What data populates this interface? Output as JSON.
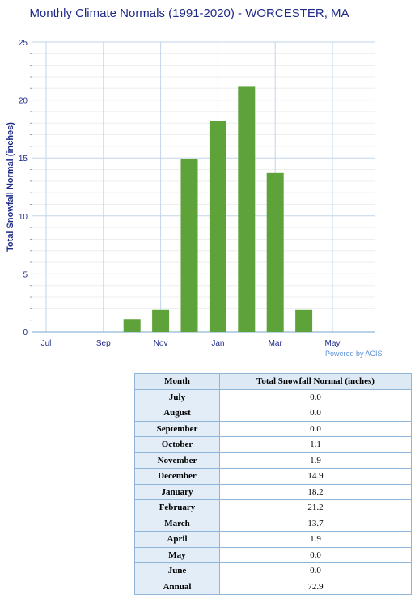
{
  "chart_data": {
    "type": "bar",
    "title": "Monthly Climate Normals (1991-2020) - WORCESTER, MA",
    "ylabel": "Total Snowfall Normal (inches)",
    "xlabel": "",
    "ylim": [
      0,
      25
    ],
    "yticks": [
      0,
      5,
      10,
      15,
      20,
      25
    ],
    "xtick_labels": [
      "Jul",
      "Sep",
      "Nov",
      "Jan",
      "Mar",
      "May"
    ],
    "categories": [
      "July",
      "August",
      "September",
      "October",
      "November",
      "December",
      "January",
      "February",
      "March",
      "April",
      "May",
      "June"
    ],
    "values": [
      0.0,
      0.0,
      0.0,
      1.1,
      1.9,
      14.9,
      18.2,
      21.2,
      13.7,
      1.9,
      0.0,
      0.0
    ],
    "bar_color": "#5ea33a",
    "grid": true,
    "credit": "Powered by ACIS"
  },
  "table": {
    "headers": [
      "Month",
      "Total Snowfall Normal (inches)"
    ],
    "rows": [
      {
        "month": "July",
        "value": "0.0"
      },
      {
        "month": "August",
        "value": "0.0"
      },
      {
        "month": "September",
        "value": "0.0"
      },
      {
        "month": "October",
        "value": "1.1"
      },
      {
        "month": "November",
        "value": "1.9"
      },
      {
        "month": "December",
        "value": "14.9"
      },
      {
        "month": "January",
        "value": "18.2"
      },
      {
        "month": "February",
        "value": "21.2"
      },
      {
        "month": "March",
        "value": "13.7"
      },
      {
        "month": "April",
        "value": "1.9"
      },
      {
        "month": "May",
        "value": "0.0"
      },
      {
        "month": "June",
        "value": "0.0"
      },
      {
        "month": "Annual",
        "value": "72.9"
      }
    ]
  }
}
